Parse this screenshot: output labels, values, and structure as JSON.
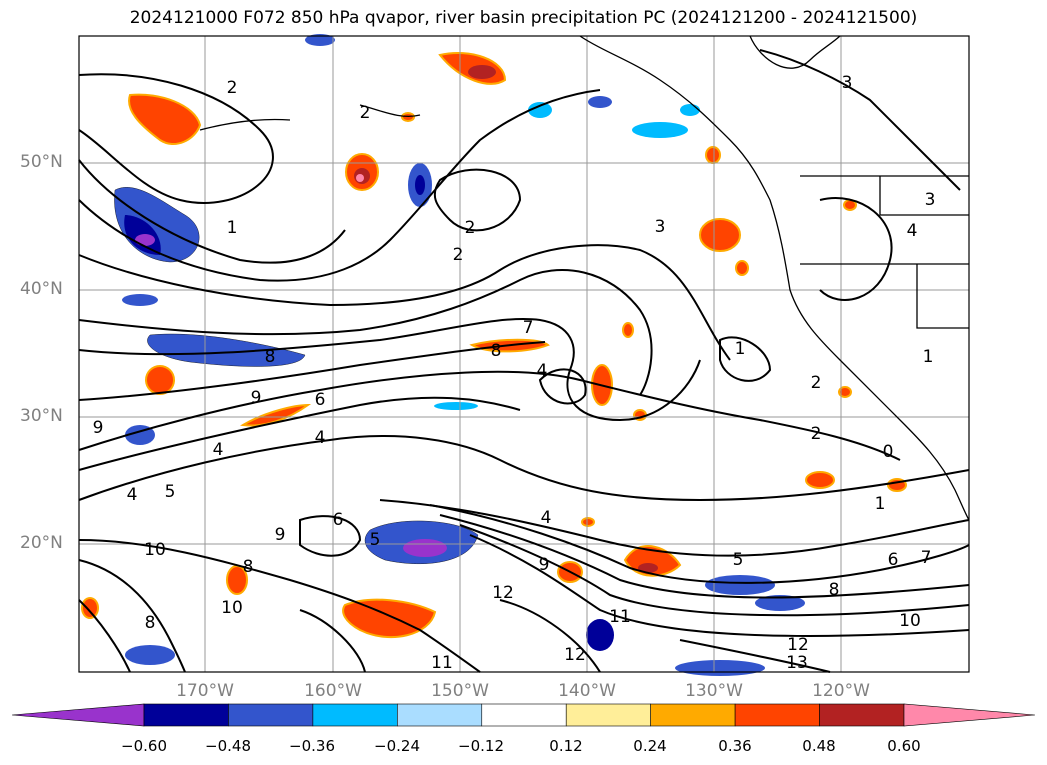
{
  "title": "2024121000 F072 850 hPa qvapor, river basin precipitation PC (2024121200 - 2024121500)",
  "lat_labels": [
    "50°N",
    "40°N",
    "30°N",
    "20°N"
  ],
  "lon_labels": [
    "170°W",
    "160°W",
    "150°W",
    "140°W",
    "130°W",
    "120°W"
  ],
  "colorbar": {
    "ticks": [
      "−0.60",
      "−0.48",
      "−0.36",
      "−0.24",
      "−0.12",
      "0.12",
      "0.24",
      "0.36",
      "0.48",
      "0.60"
    ],
    "colors": [
      "#9933cc",
      "#000099",
      "#3355cc",
      "#00bbff",
      "#aaddff",
      "#ffffff",
      "#ffee99",
      "#ffaa00",
      "#ff4400",
      "#b22222",
      "#ff88aa"
    ]
  },
  "contour_labels": [
    "2",
    "2",
    "3",
    "1",
    "2",
    "2",
    "3",
    "3",
    "4",
    "7",
    "8",
    "4",
    "1",
    "1",
    "9",
    "6",
    "8",
    "4",
    "4",
    "2",
    "2",
    "0",
    "9",
    "5",
    "4",
    "4",
    "6",
    "5",
    "9",
    "10",
    "8",
    "8",
    "10",
    "11",
    "12",
    "12",
    "11",
    "9",
    "1",
    "6",
    "7",
    "5",
    "8",
    "10",
    "12",
    "13"
  ],
  "colors": {
    "contour": "#000000",
    "grid": "#999999",
    "coast": "#000000"
  }
}
